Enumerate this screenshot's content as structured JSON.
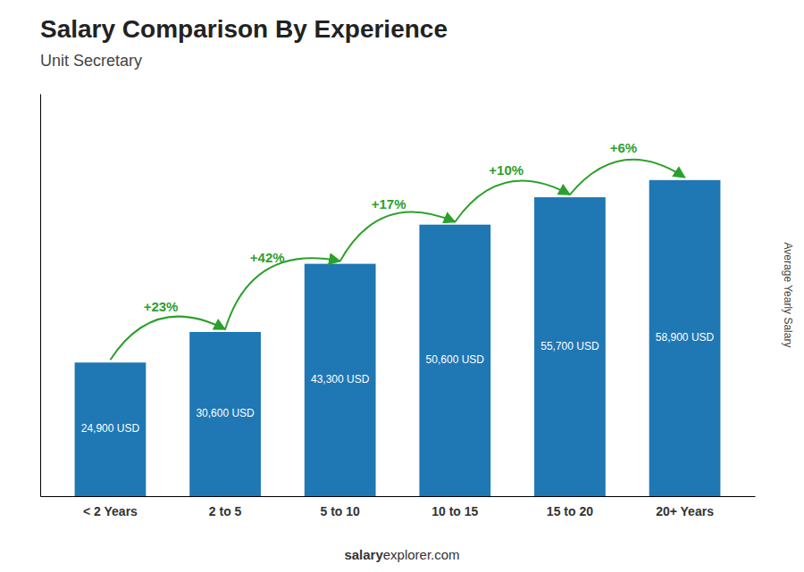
{
  "chart_data": {
    "type": "bar",
    "title": "Salary Comparison By Experience",
    "subtitle": "Unit Secretary",
    "ylabel": "Average Yearly Salary",
    "categories": [
      "< 2 Years",
      "2 to 5",
      "5 to 10",
      "10 to 15",
      "15 to 20",
      "20+ Years"
    ],
    "values": [
      24900,
      30600,
      43300,
      50600,
      55700,
      58900
    ],
    "value_labels": [
      "24,900 USD",
      "30,600 USD",
      "43,300 USD",
      "50,600 USD",
      "55,700 USD",
      "58,900 USD"
    ],
    "data_labels": true,
    "annotations": [
      "+23%",
      "+42%",
      "+17%",
      "+10%",
      "+6%"
    ],
    "footer": [
      "salary",
      "explorer.com"
    ],
    "ylim": [
      0,
      75000
    ],
    "tick_labels": "x",
    "grid": false
  }
}
